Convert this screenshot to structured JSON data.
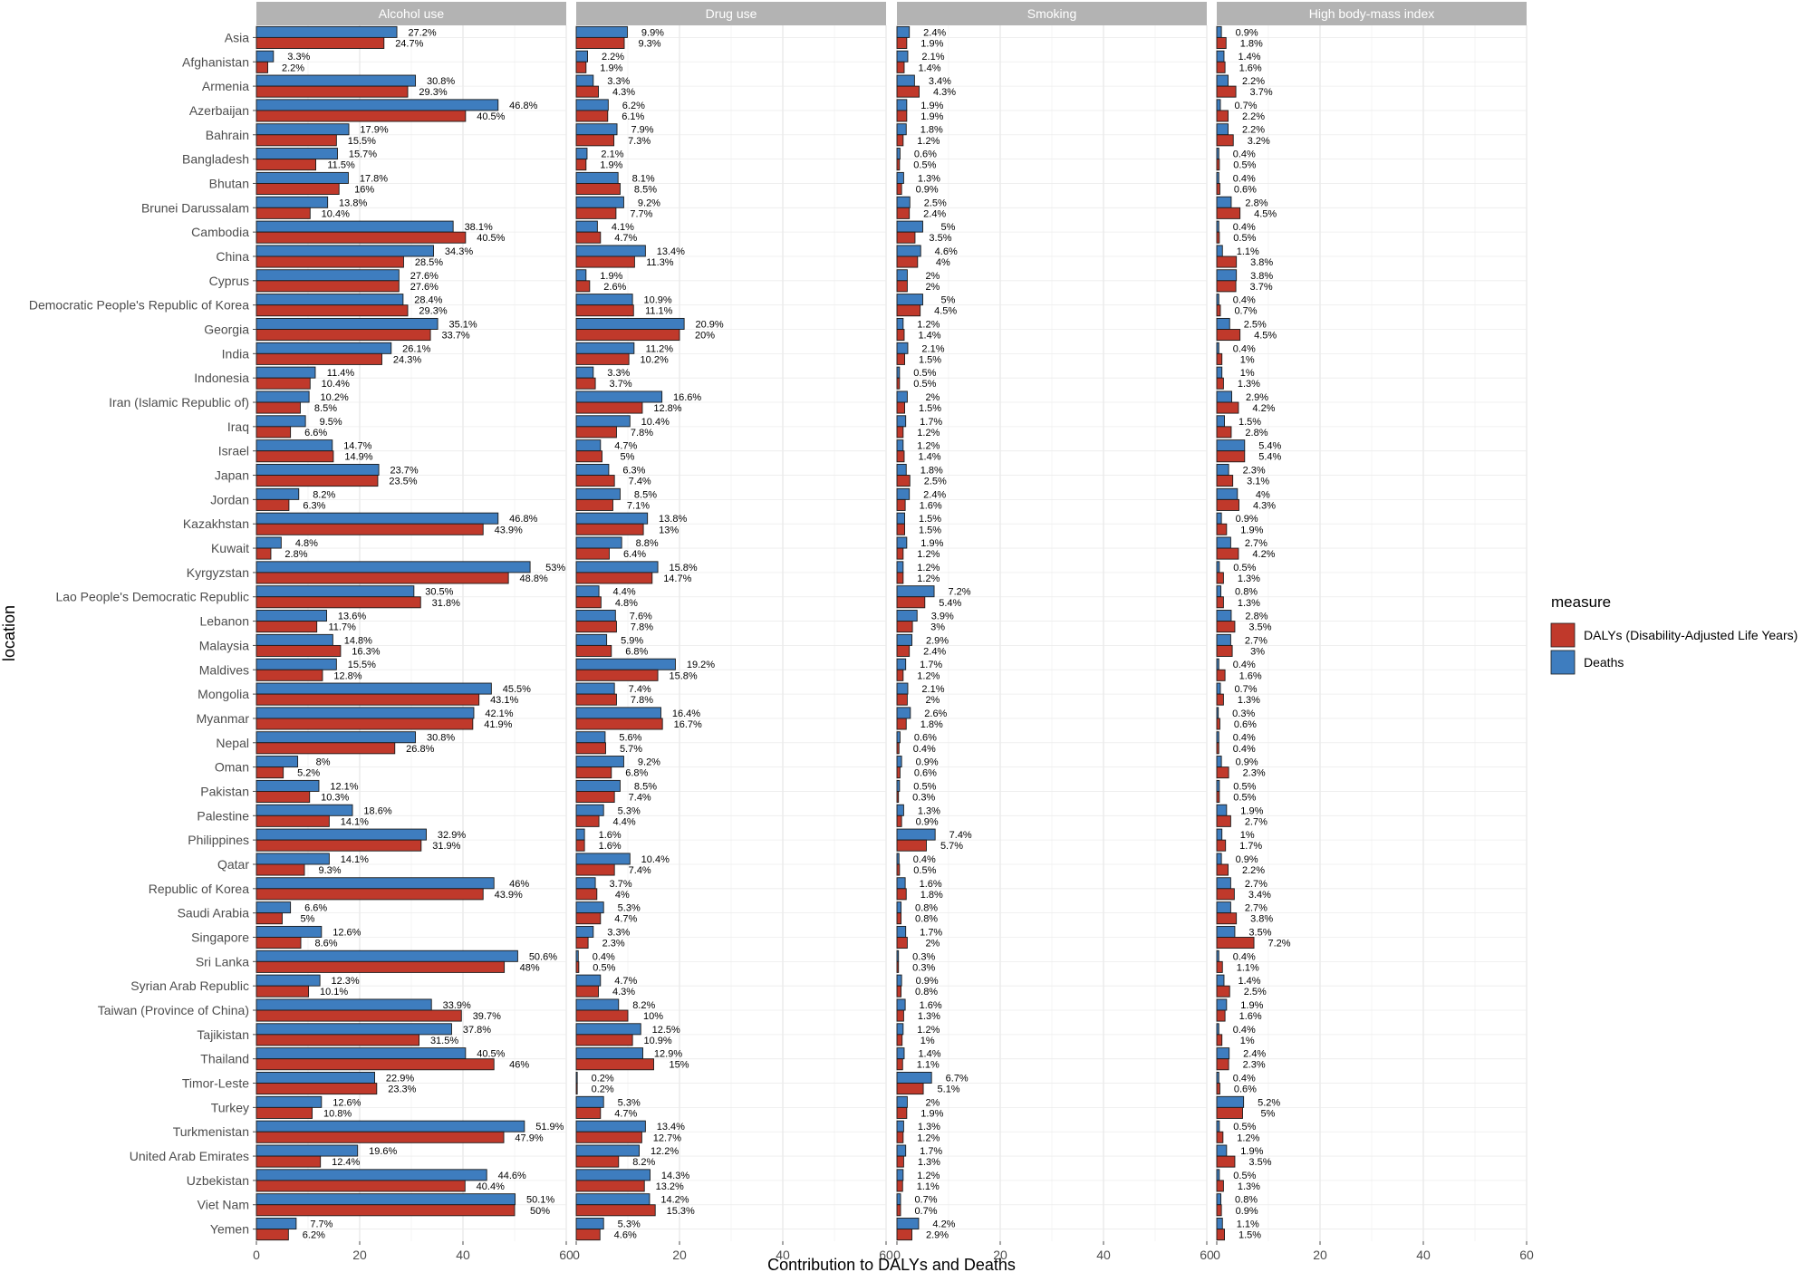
{
  "chart_data": {
    "type": "bar",
    "orientation": "horizontal",
    "facets": [
      "Alcohol use",
      "Drug use",
      "Smoking",
      "High body-mass index"
    ],
    "categories": [
      "Asia",
      "Afghanistan",
      "Armenia",
      "Azerbaijan",
      "Bahrain",
      "Bangladesh",
      "Bhutan",
      "Brunei Darussalam",
      "Cambodia",
      "China",
      "Cyprus",
      "Democratic People's Republic of Korea",
      "Georgia",
      "India",
      "Indonesia",
      "Iran (Islamic Republic of)",
      "Iraq",
      "Israel",
      "Japan",
      "Jordan",
      "Kazakhstan",
      "Kuwait",
      "Kyrgyzstan",
      "Lao People's Democratic Republic",
      "Lebanon",
      "Malaysia",
      "Maldives",
      "Mongolia",
      "Myanmar",
      "Nepal",
      "Oman",
      "Pakistan",
      "Palestine",
      "Philippines",
      "Qatar",
      "Republic of Korea",
      "Saudi Arabia",
      "Singapore",
      "Sri Lanka",
      "Syrian Arab Republic",
      "Taiwan (Province of China)",
      "Tajikistan",
      "Thailand",
      "Timor-Leste",
      "Turkey",
      "Turkmenistan",
      "United Arab Emirates",
      "Uzbekistan",
      "Viet Nam",
      "Yemen"
    ],
    "series_names": [
      "Deaths",
      "DALYs (Disability-Adjusted Life Years)"
    ],
    "colors": {
      "Deaths": "#3e7dbf",
      "DALYs (Disability-Adjusted Life Years)": "#c0392b"
    },
    "data": {
      "Alcohol use": {
        "Deaths": [
          27.2,
          3.3,
          30.8,
          46.8,
          17.9,
          15.7,
          17.8,
          13.8,
          38.1,
          34.3,
          27.6,
          28.4,
          35.1,
          26.1,
          11.4,
          10.2,
          9.5,
          14.7,
          23.7,
          8.2,
          46.8,
          4.8,
          53,
          30.5,
          13.6,
          14.8,
          15.5,
          45.5,
          42.1,
          30.8,
          8,
          12.1,
          18.6,
          32.9,
          14.1,
          46,
          6.6,
          12.6,
          50.6,
          12.3,
          33.9,
          37.8,
          40.5,
          22.9,
          12.6,
          51.9,
          19.6,
          44.6,
          50.1,
          7.7
        ],
        "DALYs (Disability-Adjusted Life Years)": [
          24.7,
          2.2,
          29.3,
          40.5,
          15.5,
          11.5,
          16,
          10.4,
          40.5,
          28.5,
          27.6,
          29.3,
          33.7,
          24.3,
          10.4,
          8.5,
          6.6,
          14.9,
          23.5,
          6.3,
          43.9,
          2.8,
          48.8,
          31.8,
          11.7,
          16.3,
          12.8,
          43.1,
          41.9,
          26.8,
          5.2,
          10.3,
          14.1,
          31.9,
          9.3,
          43.9,
          5,
          8.6,
          48,
          10.1,
          39.7,
          31.5,
          46,
          23.3,
          10.8,
          47.9,
          12.4,
          40.4,
          50,
          6.2
        ]
      },
      "Drug use": {
        "Deaths": [
          9.9,
          2.2,
          3.3,
          6.2,
          7.9,
          2.1,
          8.1,
          9.2,
          4.1,
          13.4,
          1.9,
          10.9,
          20.9,
          11.2,
          3.3,
          16.6,
          10.4,
          4.7,
          6.3,
          8.5,
          13.8,
          8.8,
          15.8,
          4.4,
          7.6,
          5.9,
          19.2,
          7.4,
          16.4,
          5.6,
          9.2,
          8.5,
          5.3,
          1.6,
          10.4,
          3.7,
          5.3,
          3.3,
          0.4,
          4.7,
          8.2,
          12.5,
          12.9,
          0.2,
          5.3,
          13.4,
          12.2,
          14.3,
          14.2,
          5.3
        ],
        "DALYs (Disability-Adjusted Life Years)": [
          9.3,
          1.9,
          4.3,
          6.1,
          7.3,
          1.9,
          8.5,
          7.7,
          4.7,
          11.3,
          2.6,
          11.1,
          20,
          10.2,
          3.7,
          12.8,
          7.8,
          5,
          7.4,
          7.1,
          13,
          6.4,
          14.7,
          4.8,
          7.8,
          6.8,
          15.8,
          7.8,
          16.7,
          5.7,
          6.8,
          7.4,
          4.4,
          1.6,
          7.4,
          4,
          4.7,
          2.3,
          0.5,
          4.3,
          10,
          10.9,
          15,
          0.2,
          4.7,
          12.7,
          8.2,
          13.2,
          15.3,
          4.6
        ]
      },
      "Smoking": {
        "Deaths": [
          2.4,
          2.1,
          3.4,
          1.9,
          1.8,
          0.6,
          1.3,
          2.5,
          5,
          4.6,
          2,
          5,
          1.2,
          2.1,
          0.5,
          2,
          1.7,
          1.2,
          1.8,
          2.4,
          1.5,
          1.9,
          1.2,
          7.2,
          3.9,
          2.9,
          1.7,
          2.1,
          2.6,
          0.6,
          0.9,
          0.5,
          1.3,
          7.4,
          0.4,
          1.6,
          0.8,
          1.7,
          0.3,
          0.9,
          1.6,
          1.2,
          1.4,
          6.7,
          2,
          1.3,
          1.7,
          1.2,
          0.7,
          4.2
        ],
        "DALYs (Disability-Adjusted Life Years)": [
          1.9,
          1.4,
          4.3,
          1.9,
          1.2,
          0.5,
          0.9,
          2.4,
          3.5,
          4,
          2,
          4.5,
          1.4,
          1.5,
          0.5,
          1.5,
          1.2,
          1.4,
          2.5,
          1.6,
          1.5,
          1.2,
          1.2,
          5.4,
          3,
          2.4,
          1.2,
          2,
          1.8,
          0.4,
          0.6,
          0.3,
          0.9,
          5.7,
          0.5,
          1.8,
          0.8,
          2,
          0.3,
          0.8,
          1.3,
          1,
          1.1,
          5.1,
          1.9,
          1.2,
          1.3,
          1.1,
          0.7,
          2.9
        ]
      },
      "High body-mass index": {
        "Deaths": [
          0.9,
          1.4,
          2.2,
          0.7,
          2.2,
          0.4,
          0.4,
          2.8,
          0.4,
          1.1,
          3.8,
          0.4,
          2.5,
          0.4,
          1,
          2.9,
          1.5,
          5.4,
          2.3,
          4,
          0.9,
          2.7,
          0.5,
          0.8,
          2.8,
          2.7,
          0.4,
          0.7,
          0.3,
          0.4,
          0.9,
          0.5,
          1.9,
          1,
          0.9,
          2.7,
          2.7,
          3.5,
          0.4,
          1.4,
          1.9,
          0.4,
          2.4,
          0.4,
          5.2,
          0.5,
          1.9,
          0.5,
          0.8,
          1.1
        ],
        "DALYs (Disability-Adjusted Life Years)": [
          1.8,
          1.6,
          3.7,
          2.2,
          3.2,
          0.5,
          0.6,
          4.5,
          0.5,
          3.8,
          3.7,
          0.7,
          4.5,
          1,
          1.3,
          4.2,
          2.8,
          5.4,
          3.1,
          4.3,
          1.9,
          4.2,
          1.3,
          1.3,
          3.5,
          3,
          1.6,
          1.3,
          0.6,
          0.4,
          2.3,
          0.5,
          2.7,
          1.7,
          2.2,
          3.4,
          3.8,
          7.2,
          1.1,
          2.5,
          1.6,
          1,
          2.3,
          0.6,
          5,
          1.2,
          3.5,
          1.3,
          0.9,
          1.5
        ]
      }
    },
    "x_ticks": [
      "0",
      "20",
      "40",
      "60"
    ],
    "xlim": [
      0,
      60
    ],
    "xlabel": "Contribution to DALYs and Deaths",
    "ylabel": "location",
    "legend_title": "measure",
    "legend_position": "right",
    "grid": true
  }
}
